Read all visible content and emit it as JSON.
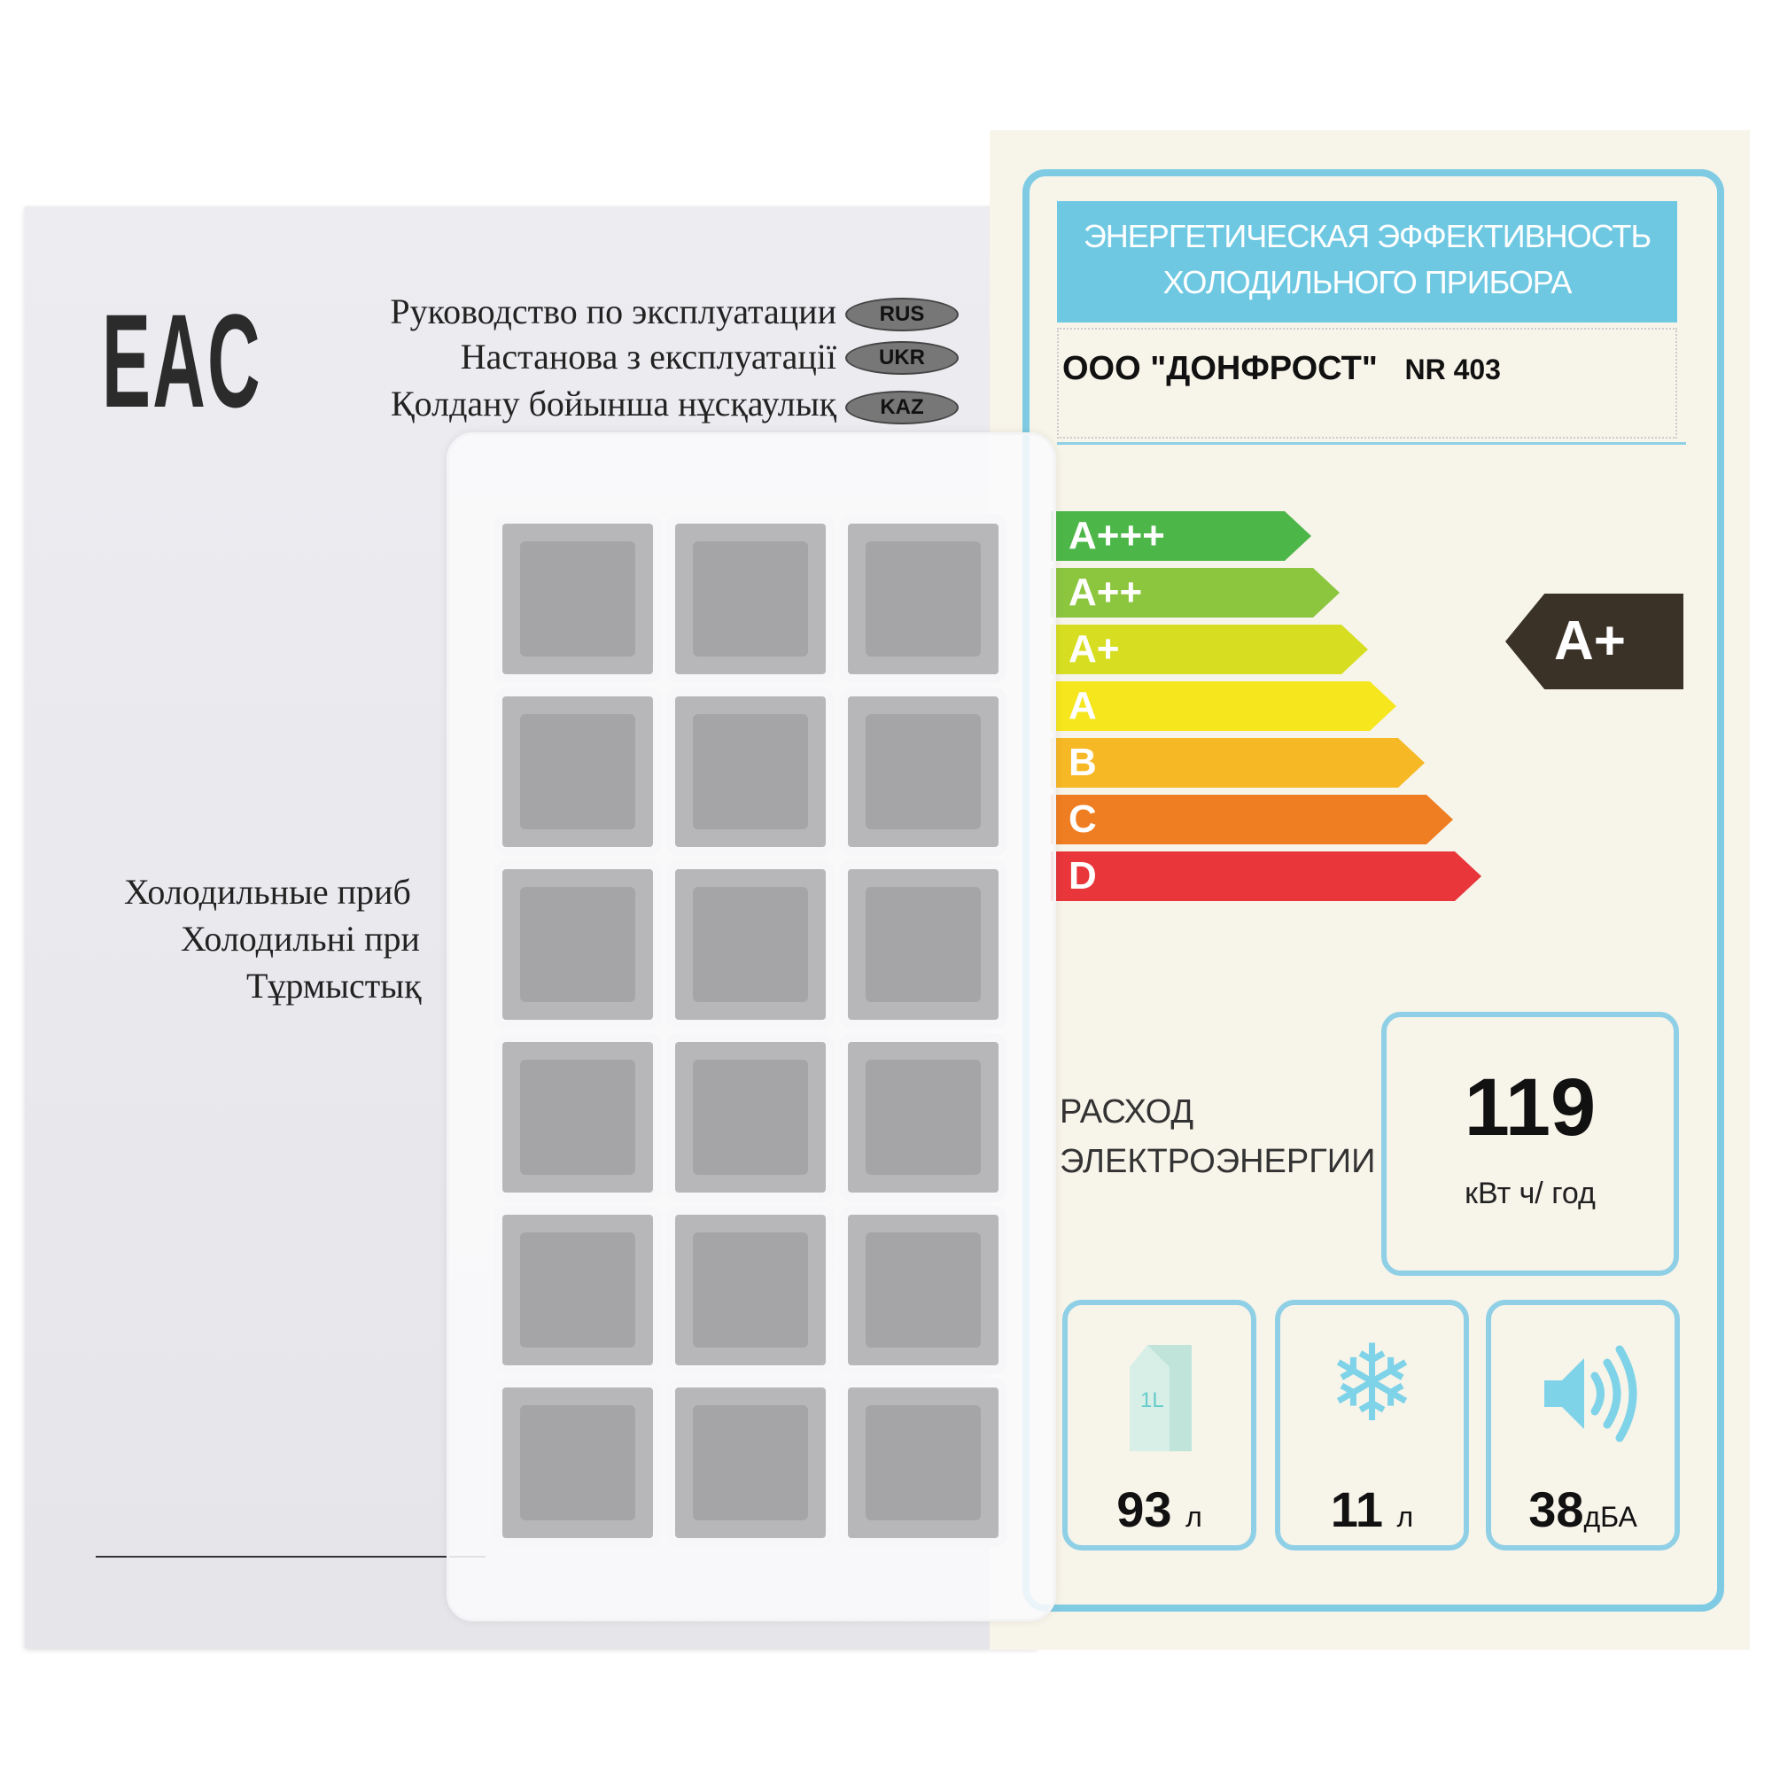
{
  "booklet": {
    "logo": "EAC",
    "titles": [
      {
        "text": "Руководство по эксплуатации",
        "lang": "RUS"
      },
      {
        "text": "Настанова з експлуатації",
        "lang": "UKR"
      },
      {
        "text": "Қолдану бойынша нұсқаулық",
        "lang": "KAZ"
      }
    ],
    "subtitles": [
      "Холодильные приб",
      "Холодильні при",
      "Тұрмыстық"
    ]
  },
  "label": {
    "header": [
      "ЭНЕРГЕТИЧЕСКАЯ  ЭФФЕКТИВНОСТЬ",
      "ХОЛОДИЛЬНОГО  ПРИБОРА"
    ],
    "company": "ООО \"ДОНФРОСТ\"",
    "model": "NR 403",
    "classes": [
      {
        "label": "A+++",
        "color": "#4cb748"
      },
      {
        "label": "A++",
        "color": "#8cc63f"
      },
      {
        "label": "A+",
        "color": "#d7de22"
      },
      {
        "label": "A",
        "color": "#f5e61e"
      },
      {
        "label": "B",
        "color": "#f6b824"
      },
      {
        "label": "C",
        "color": "#ef7d22"
      },
      {
        "label": "D",
        "color": "#e8363a"
      }
    ],
    "rating": "A+",
    "rating_color": "#3a3227",
    "consumption_label": [
      "РАСХОД",
      "ЭЛЕКТРОЭНЕРГИИ"
    ],
    "consumption_value": "119",
    "consumption_unit": "кВт ч/ год",
    "fresh_volume": "93",
    "fresh_unit": "л",
    "fresh_icon": "milk-carton-icon",
    "carton_text": "1L",
    "freezer_volume": "11",
    "freezer_unit": "л",
    "freezer_icon": "snowflake-icon",
    "noise": "38",
    "noise_unit": "дБА",
    "noise_icon": "speaker-icon"
  }
}
